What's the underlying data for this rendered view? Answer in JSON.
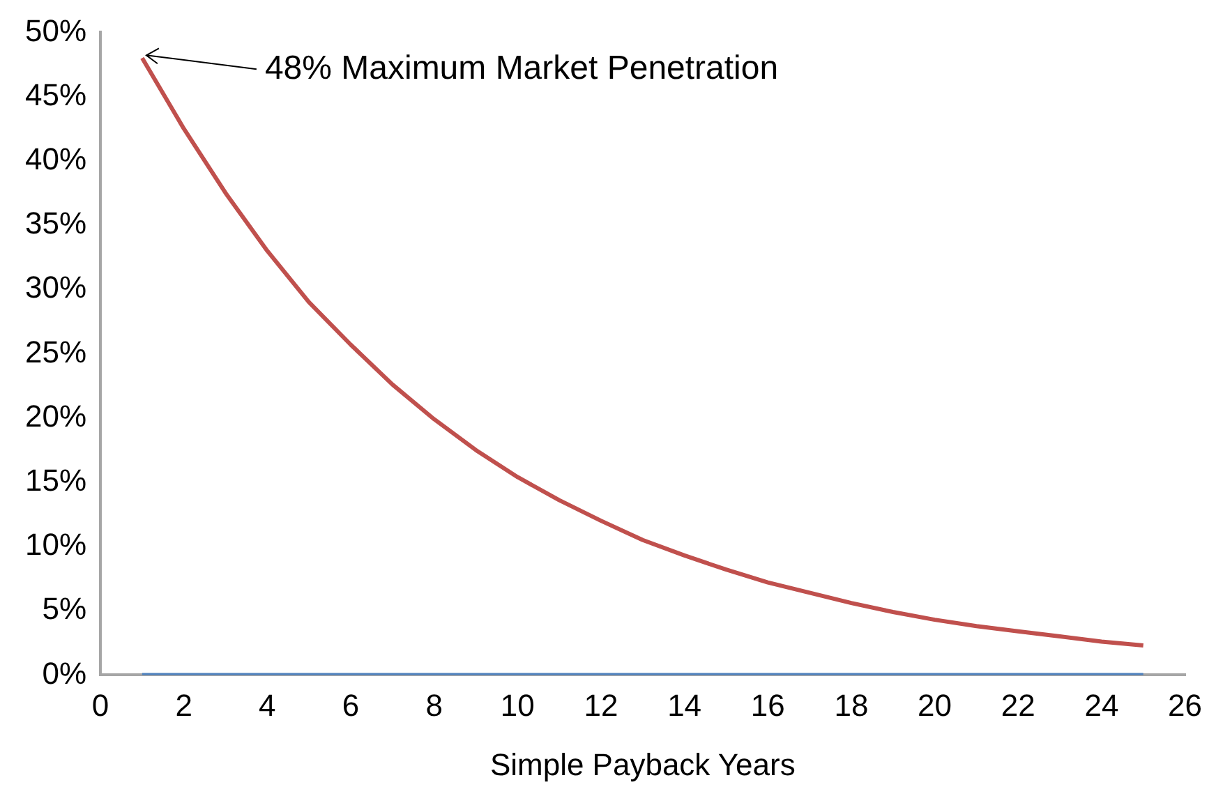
{
  "chart_data": {
    "type": "line",
    "xlabel": "Simple Payback Years",
    "x": [
      1,
      2,
      3,
      4,
      5,
      6,
      7,
      8,
      9,
      10,
      11,
      12,
      13,
      14,
      15,
      16,
      17,
      18,
      19,
      20,
      21,
      22,
      23,
      24,
      25
    ],
    "series": [
      {
        "color": "#c0504d",
        "values": [
          48,
          42.5,
          37.5,
          33,
          29,
          25.7,
          22.6,
          19.9,
          17.5,
          15.4,
          13.6,
          12,
          10.5,
          9.3,
          8.2,
          7.2,
          6.4,
          5.6,
          4.9,
          4.3,
          3.8,
          3.4,
          3,
          2.6,
          2.3
        ]
      },
      {
        "color": "#4f81bd",
        "values": [
          0,
          0,
          0,
          0,
          0,
          0,
          0,
          0,
          0,
          0,
          0,
          0,
          0,
          0,
          0,
          0,
          0,
          0,
          0,
          0,
          0,
          0,
          0,
          0,
          0
        ]
      }
    ],
    "xlim": [
      0,
      26
    ],
    "xticks": [
      0,
      2,
      4,
      6,
      8,
      10,
      12,
      14,
      16,
      18,
      20,
      22,
      24,
      26
    ],
    "ylim": [
      0,
      50
    ],
    "yticks": [
      {
        "value": 0,
        "label": "0%"
      },
      {
        "value": 5,
        "label": "5%"
      },
      {
        "value": 10,
        "label": "10%"
      },
      {
        "value": 15,
        "label": "15%"
      },
      {
        "value": 20,
        "label": "20%"
      },
      {
        "value": 25,
        "label": "25%"
      },
      {
        "value": 30,
        "label": "30%"
      },
      {
        "value": 35,
        "label": "35%"
      },
      {
        "value": 40,
        "label": "40%"
      },
      {
        "value": 45,
        "label": "45%"
      },
      {
        "value": 50,
        "label": "50%"
      }
    ],
    "annotations": [
      {
        "text": "48% Maximum Market Penetration",
        "x": 1,
        "y": 48
      }
    ],
    "grid": false,
    "legend": false,
    "marker": "none",
    "line_style": "solid"
  }
}
